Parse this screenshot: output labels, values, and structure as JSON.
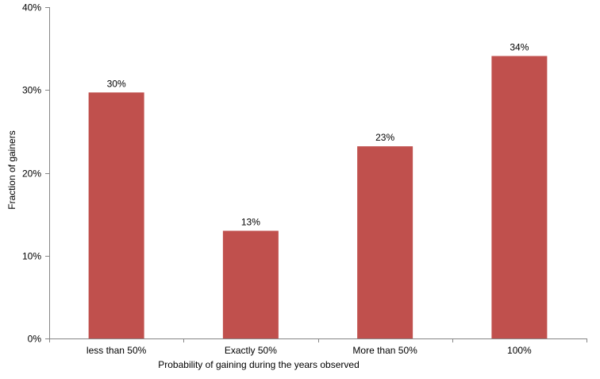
{
  "chart_data": {
    "type": "bar",
    "categories": [
      "less than 50%",
      "Exactly 50%",
      "More than 50%",
      "100%"
    ],
    "values": [
      29.7,
      13.0,
      23.2,
      34.1
    ],
    "data_labels": [
      "30%",
      "13%",
      "23%",
      "34%"
    ],
    "xlabel": "Probability of gaining during the years observed",
    "ylabel": "Fraction of gainers",
    "ylim": [
      0,
      40
    ],
    "yticks": [
      0,
      10,
      20,
      30,
      40
    ],
    "ytick_labels": [
      "0%",
      "10%",
      "20%",
      "30%",
      "40%"
    ],
    "bar_color": "#c0504d",
    "grid": false,
    "legend": "none"
  }
}
